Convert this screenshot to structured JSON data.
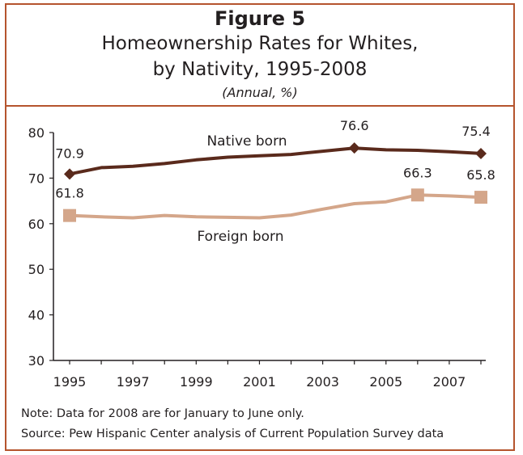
{
  "figure_label": "Figure 5",
  "chart_data": {
    "type": "line",
    "title": "Homeownership Rates for Whites,",
    "title_line2": "by Nativity, 1995-2008",
    "subtitle": "(Annual, %)",
    "x": [
      1995,
      1996,
      1997,
      1998,
      1999,
      2000,
      2001,
      2002,
      2003,
      2004,
      2005,
      2006,
      2007,
      2008
    ],
    "xticks": [
      "1995",
      "1997",
      "1999",
      "2001",
      "2003",
      "2005",
      "2007"
    ],
    "yticks": [
      "30",
      "40",
      "50",
      "60",
      "70",
      "80"
    ],
    "ylim": [
      30,
      80
    ],
    "series": [
      {
        "name": "Native born",
        "color": "#5a2a1c",
        "marker": "diamond",
        "values": [
          70.9,
          72.3,
          72.6,
          73.2,
          74.0,
          74.6,
          74.9,
          75.2,
          75.9,
          76.6,
          76.2,
          76.1,
          75.8,
          75.4
        ],
        "labels": [
          {
            "index": 0,
            "text": "70.9"
          },
          {
            "index": 9,
            "text": "76.6"
          },
          {
            "index": 13,
            "text": "75.4"
          }
        ]
      },
      {
        "name": "Foreign born",
        "color": "#d4a68a",
        "marker": "square",
        "values": [
          61.8,
          61.5,
          61.3,
          61.8,
          61.5,
          61.4,
          61.3,
          61.9,
          63.2,
          64.4,
          64.8,
          66.3,
          66.1,
          65.8
        ],
        "labels": [
          {
            "index": 0,
            "text": "61.8"
          },
          {
            "index": 11,
            "text": "66.3"
          },
          {
            "index": 13,
            "text": "65.8"
          }
        ]
      }
    ],
    "grid": false,
    "legend": "inline"
  },
  "notes": {
    "note": "Note: Data for 2008 are for January to June only.",
    "source": "Source: Pew Hispanic Center analysis of Current Population Survey data"
  }
}
